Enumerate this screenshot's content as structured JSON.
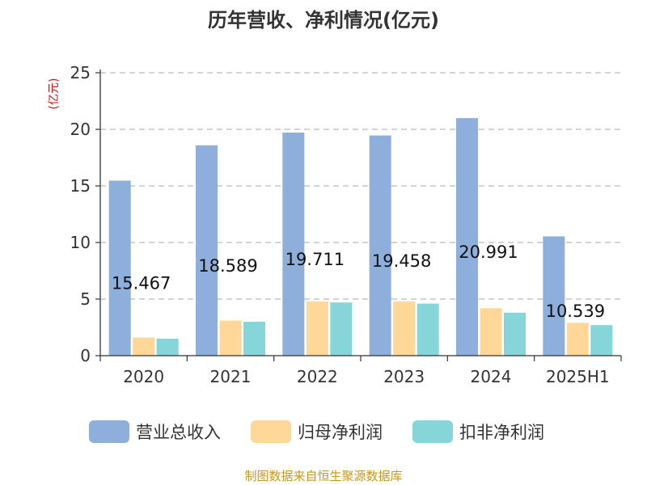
{
  "chart_data": {
    "type": "bar",
    "title": "历年营收、净利情况(亿元)",
    "ylabel": "(亿元)",
    "xlabel": "",
    "ylim": [
      0,
      25
    ],
    "yticks": [
      0,
      5,
      10,
      15,
      20,
      25
    ],
    "grid": true,
    "legend_position": "bottom",
    "categories": [
      "2020",
      "2021",
      "2022",
      "2023",
      "2024",
      "2025H1"
    ],
    "series": [
      {
        "name": "营业总收入",
        "color": "#8eaedb",
        "values": [
          15.467,
          18.589,
          19.711,
          19.458,
          20.991,
          10.539
        ],
        "show_labels": true
      },
      {
        "name": "归母净利润",
        "color": "#ffd799",
        "values": [
          1.6,
          3.1,
          4.8,
          4.8,
          4.2,
          2.9
        ],
        "show_labels": false
      },
      {
        "name": "扣非净利润",
        "color": "#86d5d8",
        "values": [
          1.5,
          3.0,
          4.7,
          4.6,
          3.8,
          2.7
        ],
        "show_labels": false
      }
    ],
    "source": "制图数据来自恒生聚源数据库"
  }
}
